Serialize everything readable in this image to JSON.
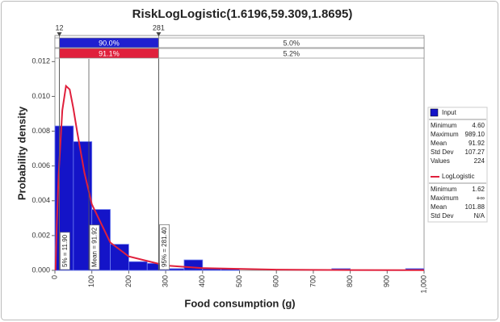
{
  "chart_data": {
    "type": "histogram",
    "title": "RiskLogLogistic(1.6196,59.309,1.8695)",
    "x_label": "Food consumption (g)",
    "y_label": "Probability density",
    "name": "Input",
    "color": "#1414c8",
    "bins": [
      0,
      50,
      100,
      150,
      200,
      250,
      300,
      350,
      400,
      450,
      500,
      550,
      600,
      650,
      700,
      750,
      800,
      850,
      900,
      950,
      1000
    ],
    "values": [
      0.0083,
      0.0074,
      0.0035,
      0.0015,
      0.0005,
      0.0004,
      0.0001,
      0.0006,
      0.0001,
      0.0001,
      0,
      0,
      0,
      0,
      0,
      0.0001,
      0,
      0,
      0,
      0.0001
    ],
    "xlim": [
      0,
      1000
    ],
    "ylim": [
      0,
      0.0135
    ],
    "xticks": [
      0,
      100,
      200,
      300,
      400,
      500,
      600,
      700,
      800,
      900,
      {
        "value": 1000,
        "label": "1,000"
      }
    ],
    "yticks": [
      {
        "value": 0,
        "label": "0.000"
      },
      {
        "value": 0.002,
        "label": "0.002"
      },
      {
        "value": 0.004,
        "label": "0.004"
      },
      {
        "value": 0.006,
        "label": "0.006"
      },
      {
        "value": 0.008,
        "label": "0.008"
      },
      {
        "value": 0.01,
        "label": "0.010"
      },
      {
        "value": 0.012,
        "label": "0.012"
      }
    ],
    "stats": [
      [
        "Minimum",
        "4.60"
      ],
      [
        "Maximum",
        "989.10"
      ],
      [
        "Mean",
        "91.92"
      ],
      [
        "Std Dev",
        "107.27"
      ],
      [
        "Values",
        "224"
      ]
    ],
    "curve": {
      "name": "LogLogistic",
      "color": "#e0203c",
      "x": [
        1.62,
        5,
        10,
        20,
        30,
        40,
        50,
        60,
        80,
        100,
        150,
        200,
        300,
        400,
        600,
        800,
        1000
      ],
      "values": [
        0,
        0.0026,
        0.0055,
        0.0092,
        0.0106,
        0.0104,
        0.0093,
        0.008,
        0.0056,
        0.0038,
        0.0016,
        0.0008,
        0.00028,
        0.00013,
        4e-05,
        1.8e-05,
        9.5e-06
      ],
      "stats": [
        [
          "Minimum",
          "1.62"
        ],
        [
          "Maximum",
          "+∞"
        ],
        [
          "Mean",
          "101.88"
        ],
        [
          "Std Dev",
          "N/A"
        ]
      ]
    },
    "delimiters": [
      12,
      281
    ],
    "probability_bars": [
      {
        "color": "#1f1fcf",
        "middle": {
          "value": 90.0,
          "label": "90.0%"
        },
        "right": {
          "value": 5.0,
          "label": "5.0%"
        }
      },
      {
        "color": "#e0203c",
        "middle": {
          "value": 91.1,
          "label": "91.1%"
        },
        "right": {
          "value": 5.2,
          "label": "5.2%"
        }
      }
    ],
    "markers": [
      {
        "value": 11.9,
        "label": "5% = 11.90"
      },
      {
        "value": 91.92,
        "label": "Mean = 91.92"
      },
      {
        "value": 281.4,
        "label": "95% = 281.40"
      }
    ]
  }
}
